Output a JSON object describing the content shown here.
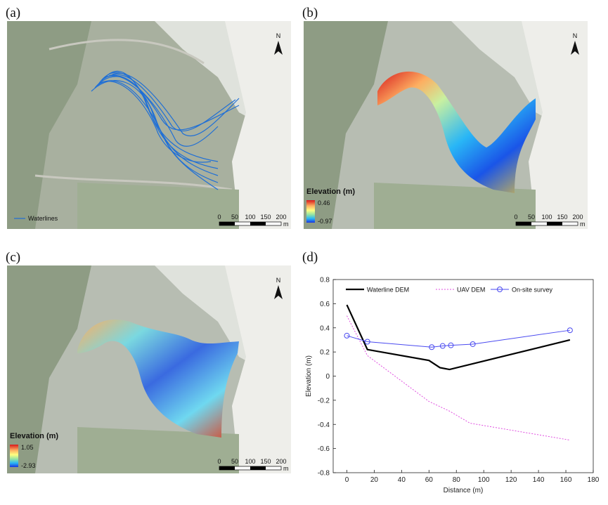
{
  "panels": {
    "a": {
      "label": "(a)",
      "legend": "Waterlines"
    },
    "b": {
      "label": "(b)",
      "legend_title": "Elevation (m)",
      "max": "0.46",
      "min": "-0.97"
    },
    "c": {
      "label": "(c)",
      "legend_title": "Elevation (m)",
      "max": "1.05",
      "min": "-2.93"
    },
    "d": {
      "label": "(d)"
    }
  },
  "north_label": "N",
  "scale_labels": [
    "0",
    "50",
    "100",
    "150",
    "200"
  ],
  "scale_unit": "m",
  "colors": {
    "waterline": "#1f6fd6",
    "waterline_dem": "#000000",
    "uav_dem": "#e04fe0",
    "survey": "#4a4af0"
  },
  "chart_data": {
    "type": "line",
    "xlabel": "Distance (m)",
    "ylabel": "Elevation (m)",
    "xlim": [
      -10,
      180
    ],
    "ylim": [
      -0.8,
      0.8
    ],
    "xticks": [
      0,
      20,
      40,
      60,
      80,
      100,
      120,
      140,
      160,
      180
    ],
    "yticks": [
      -0.8,
      -0.6,
      -0.4,
      -0.2,
      0,
      0.2,
      0.4,
      0.6,
      0.8
    ],
    "grid": false,
    "legend_position": "top",
    "series": [
      {
        "name": "Waterline DEM",
        "style": "solid-thick",
        "color": "#000000",
        "x": [
          0,
          15,
          60,
          68,
          75,
          163
        ],
        "y": [
          0.59,
          0.22,
          0.13,
          0.07,
          0.055,
          0.3
        ]
      },
      {
        "name": "UAV DEM",
        "style": "dotted",
        "color": "#e04fe0",
        "x": [
          0,
          15,
          60,
          75,
          90,
          163
        ],
        "y": [
          0.5,
          0.17,
          -0.21,
          -0.29,
          -0.39,
          -0.53
        ]
      },
      {
        "name": "On-site survey",
        "style": "line-circle",
        "color": "#4a4af0",
        "x": [
          0,
          15,
          62,
          70,
          76,
          92,
          163
        ],
        "y": [
          0.335,
          0.285,
          0.24,
          0.25,
          0.255,
          0.265,
          0.38
        ]
      }
    ]
  }
}
